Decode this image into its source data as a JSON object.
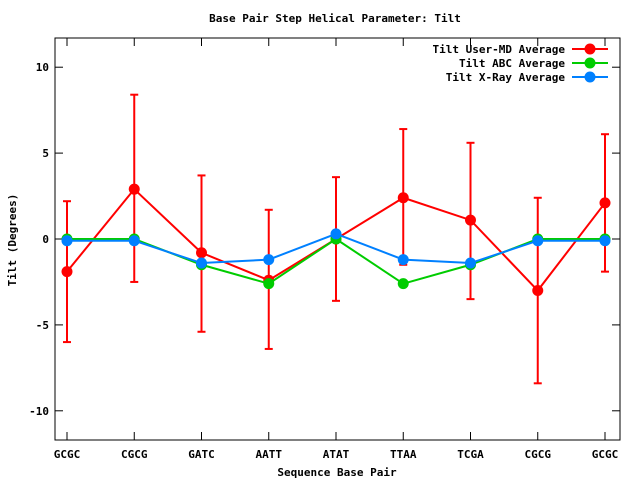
{
  "chart_data": {
    "type": "line",
    "title": "Base Pair Step Helical Parameter: Tilt",
    "xlabel": "Sequence Base Pair",
    "ylabel": "Tilt (Degrees)",
    "categories": [
      "GCGC",
      "CGCG",
      "GATC",
      "AATT",
      "ATAT",
      "TTAA",
      "TCGA",
      "CGCG",
      "GCGC"
    ],
    "ylim": [
      -11.7,
      11.7
    ],
    "yticks": [
      -10,
      -5,
      0,
      5,
      10
    ],
    "grid": false,
    "legend_position": "top-right",
    "series": [
      {
        "name": "Tilt User-MD Average",
        "color": "#ff0000",
        "values": [
          -1.9,
          2.9,
          -0.8,
          -2.4,
          0.0,
          2.4,
          1.1,
          -3.0,
          2.1
        ],
        "error_low": [
          -6.0,
          -2.5,
          -5.4,
          -6.4,
          -3.6,
          -1.5,
          -3.5,
          -8.4,
          -1.9
        ],
        "error_high": [
          2.2,
          8.4,
          3.7,
          1.7,
          3.6,
          6.4,
          5.6,
          2.4,
          6.1
        ]
      },
      {
        "name": "Tilt ABC Average",
        "color": "#00cc00",
        "values": [
          0.0,
          0.0,
          -1.5,
          -2.6,
          0.0,
          -2.6,
          -1.5,
          0.0,
          0.0
        ]
      },
      {
        "name": "Tilt X-Ray Average",
        "color": "#0080ff",
        "values": [
          -0.1,
          -0.1,
          -1.4,
          -1.2,
          0.3,
          -1.2,
          -1.4,
          -0.1,
          -0.1
        ]
      }
    ]
  }
}
